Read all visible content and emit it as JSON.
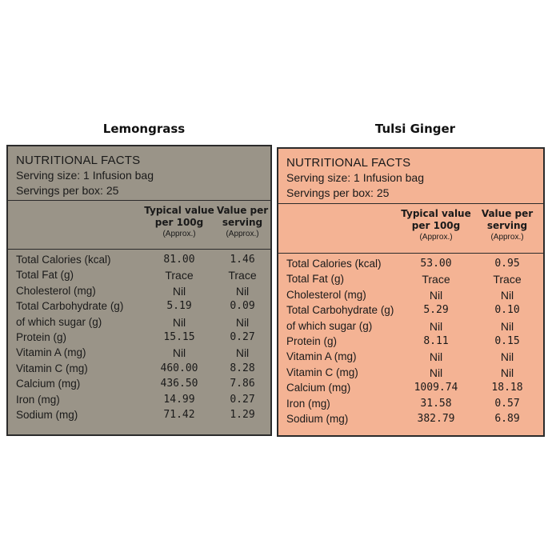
{
  "panels": [
    {
      "product_name": "Lemongrass",
      "color": "#9a9488",
      "facts_title": "NUTRITIONAL FACTS",
      "serving_size": "Serving size: 1 Infusion bag",
      "servings_per_box": "Servings per box: 25",
      "col_typical": "Typical value per 100g",
      "col_serving": "Value per serving",
      "approx": "(Approx.)",
      "rows": [
        {
          "label": "Total Calories (kcal)",
          "typical": "81.00",
          "serving": "1.46"
        },
        {
          "label": "Total Fat (g)",
          "typical": "Trace",
          "serving": "Trace"
        },
        {
          "label": "Cholesterol (mg)",
          "typical": "Nil",
          "serving": "Nil"
        },
        {
          "label": "Total Carbohydrate (g)",
          "typical": "5.19",
          "serving": "0.09"
        },
        {
          "label": "of which sugar (g)",
          "typical": "Nil",
          "serving": "Nil"
        },
        {
          "label": "Protein (g)",
          "typical": "15.15",
          "serving": "0.27"
        },
        {
          "label": "Vitamin A (mg)",
          "typical": "Nil",
          "serving": "Nil"
        },
        {
          "label": "Vitamin C (mg)",
          "typical": "460.00",
          "serving": "8.28"
        },
        {
          "label": "Calcium (mg)",
          "typical": "436.50",
          "serving": "7.86"
        },
        {
          "label": "Iron (mg)",
          "typical": "14.99",
          "serving": "0.27"
        },
        {
          "label": "Sodium (mg)",
          "typical": "71.42",
          "serving": "1.29"
        }
      ]
    },
    {
      "product_name": "Tulsi Ginger",
      "color": "#f4b394",
      "facts_title": "NUTRITIONAL FACTS",
      "serving_size": "Serving size: 1 Infusion bag",
      "servings_per_box": "Servings per box: 25",
      "col_typical": "Typical value per 100g",
      "col_serving": "Value per serving",
      "approx": "(Approx.)",
      "rows": [
        {
          "label": "Total Calories (kcal)",
          "typical": "53.00",
          "serving": "0.95"
        },
        {
          "label": "Total Fat (g)",
          "typical": "Trace",
          "serving": "Trace"
        },
        {
          "label": "Cholesterol (mg)",
          "typical": "Nil",
          "serving": "Nil"
        },
        {
          "label": "Total Carbohydrate (g)",
          "typical": "5.29",
          "serving": "0.10"
        },
        {
          "label": "of which sugar (g)",
          "typical": "Nil",
          "serving": "Nil"
        },
        {
          "label": "Protein (g)",
          "typical": "8.11",
          "serving": "0.15"
        },
        {
          "label": "Vitamin A (mg)",
          "typical": "Nil",
          "serving": "Nil"
        },
        {
          "label": "Vitamin C (mg)",
          "typical": "Nil",
          "serving": "Nil"
        },
        {
          "label": "Calcium (mg)",
          "typical": "1009.74",
          "serving": "18.18"
        },
        {
          "label": "Iron (mg)",
          "typical": "31.58",
          "serving": "0.57"
        },
        {
          "label": "Sodium (mg)",
          "typical": "382.79",
          "serving": "6.89"
        }
      ]
    }
  ]
}
